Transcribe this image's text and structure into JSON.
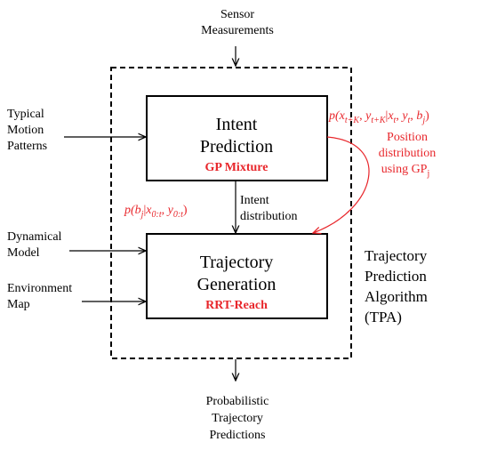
{
  "inputs": {
    "sensor": [
      "Sensor",
      "Measurements"
    ],
    "motion": [
      "Typical",
      "Motion",
      "Patterns"
    ],
    "dynamical": [
      "Dynamical",
      "Model"
    ],
    "environment": [
      "Environment",
      "Map"
    ]
  },
  "boxes": {
    "intent": {
      "title": [
        "Intent",
        "Prediction"
      ],
      "method": "GP Mixture"
    },
    "trajectory": {
      "title": [
        "Trajectory",
        "Generation"
      ],
      "method": "RRT-Reach"
    }
  },
  "intent_link": [
    "Intent",
    "distribution"
  ],
  "intent_formula": [
    "p(",
    "b",
    "j",
    "|",
    "x",
    "0:t",
    ", ",
    "y",
    "0:t",
    ")"
  ],
  "position_formula": [
    "p(",
    "x",
    "t+K",
    ", ",
    "y",
    "t+K",
    "|",
    "x",
    "t",
    ", ",
    "y",
    "t",
    ", ",
    "b",
    "j",
    ")"
  ],
  "position_note": {
    "lines": [
      "Position",
      "distribution",
      "using GP"
    ],
    "subscript": "j"
  },
  "algorithm": [
    "Trajectory",
    "Prediction",
    "Algorithm",
    "(TPA)"
  ],
  "output": [
    "Probabilistic",
    "Trajectory",
    "Predictions"
  ]
}
